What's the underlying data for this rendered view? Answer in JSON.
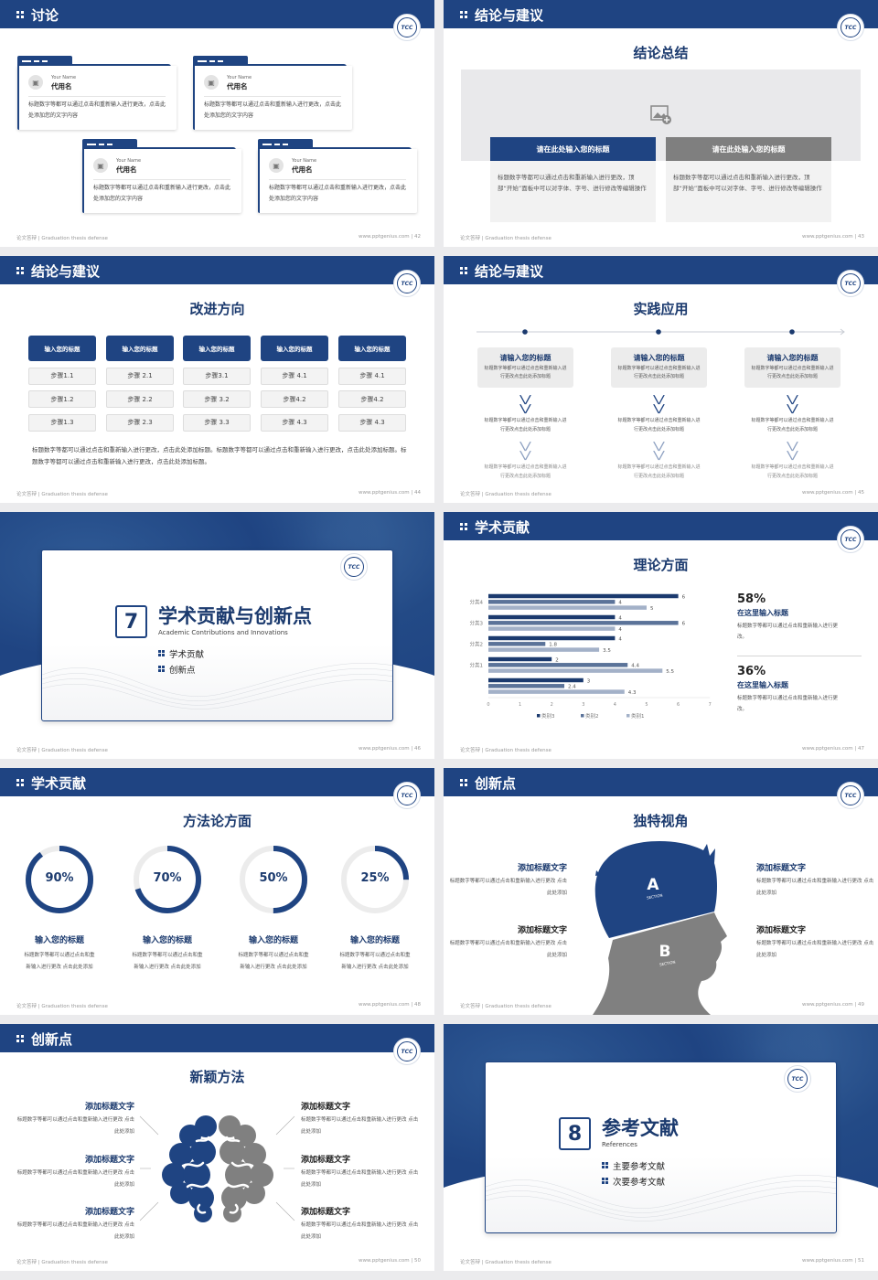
{
  "common": {
    "footer_left": "论文答辩 | Graduation thesis defense",
    "footer_site": "www.pptgenius.com",
    "logo_text": "TCC",
    "brand_color": "#1f4482",
    "secondary_color": "#808080"
  },
  "s42": {
    "header": "讨论",
    "page": "| 42",
    "cards": [
      {
        "en": "Your Name",
        "name": "代用名",
        "text": "标题数字等都可以通过点击和重新输入进行更改，点击此处添加您的文字内容"
      },
      {
        "en": "Your Name",
        "name": "代用名",
        "text": "标题数字等都可以通过点击和重新输入进行更改，点击此处添加您的文字内容"
      },
      {
        "en": "Your Name",
        "name": "代用名",
        "text": "标题数字等都可以通过点击和重新输入进行更改，点击此处添加您的文字内容"
      },
      {
        "en": "Your Name",
        "name": "代用名",
        "text": "标题数字等都可以通过点击和重新输入进行更改，点击此处添加您的文字内容"
      }
    ]
  },
  "s43": {
    "header": "结论与建议",
    "title": "结论总结",
    "page": "| 43",
    "boxes": [
      {
        "title": "请在此处输入您的标题",
        "text": "标题数字等都可以通过点击和重新输入进行更改，顶部“开始”面板中可以对字体、字号、进行修改等编辑操作"
      },
      {
        "title": "请在此处输入您的标题",
        "text": "标题数字等都可以通过点击和重新输入进行更改，顶部“开始”面板中可以对字体、字号、进行修改等编辑操作"
      }
    ]
  },
  "s44": {
    "header": "结论与建议",
    "title": "改进方向",
    "page": "| 44",
    "columns": [
      {
        "title": "输入您的标题",
        "steps": [
          "步骤1.1",
          "步骤1.2",
          "步骤1.3"
        ]
      },
      {
        "title": "输入您的标题",
        "steps": [
          "步骤 2.1",
          "步骤 2.2",
          "步骤 2.3"
        ]
      },
      {
        "title": "输入您的标题",
        "steps": [
          "步骤3.1",
          "步骤 3.2",
          "步骤 3.3"
        ]
      },
      {
        "title": "输入您的标题",
        "steps": [
          "步骤 4.1",
          "步骤4.2",
          "步骤 4.3"
        ]
      },
      {
        "title": "输入您的标题",
        "steps": [
          "步骤 4.1",
          "步骤4.2",
          "步骤 4.3"
        ]
      }
    ],
    "paragraph": "标题数字等都可以通过点击和重新输入进行更改，点击此处添加标题。标题数字等都可以通过点击和重新输入进行更改，点击此处添加标题。标题数字等都可以通过点击和重新输入进行更改，点击此处添加标题。"
  },
  "s45": {
    "header": "结论与建议",
    "title": "实践应用",
    "page": "| 45",
    "columns": [
      {
        "title": "请输入您的标题",
        "text": "标题数字等都可以通过点击和重新输入进行更改点击此处添加标题",
        "step1": "标题数字等都可以通过点击和重新输入进行更改点击此处添加标题",
        "step2": "标题数字等都可以通过点击和重新输入进行更改点击此处添加标题"
      },
      {
        "title": "请输入您的标题",
        "text": "标题数字等都可以通过点击和重新输入进行更改点击此处添加标题",
        "step1": "标题数字等都可以通过点击和重新输入进行更改点击此处添加标题",
        "step2": "标题数字等都可以通过点击和重新输入进行更改点击此处添加标题"
      },
      {
        "title": "请输入您的标题",
        "text": "标题数字等都可以通过点击和重新输入进行更改点击此处添加标题",
        "step1": "标题数字等都可以通过点击和重新输入进行更改点击此处添加标题",
        "step2": "标题数字等都可以通过点击和重新输入进行更改点击此处添加标题"
      }
    ]
  },
  "s46": {
    "number": "7",
    "title": "学术贡献与创新点",
    "subtitle": "Academic Contributions and Innovations",
    "items": [
      "学术贡献",
      "创新点"
    ],
    "page": "| 46"
  },
  "s47": {
    "header": "学术贡献",
    "title": "理论方面",
    "page": "| 47",
    "stats": [
      {
        "value": "58%",
        "title": "在这里输入标题",
        "text": "标题数字等都可以通过点击和重新输入进行更改。"
      },
      {
        "value": "36%",
        "title": "在这里输入标题",
        "text": "标题数字等都可以通过点击和重新输入进行更改。"
      }
    ]
  },
  "chart_data": {
    "type": "bar",
    "orientation": "horizontal",
    "categories": [
      "分类4",
      "分类3",
      "分类2",
      "分类1",
      ""
    ],
    "series": [
      {
        "name": "类别3",
        "color": "#1b3a6e",
        "values": [
          6,
          4,
          4,
          2,
          3
        ]
      },
      {
        "name": "类别2",
        "color": "#5b7399",
        "values": [
          4,
          6,
          1.8,
          4.4,
          2.4
        ]
      },
      {
        "name": "类别1",
        "color": "#a3b1c8",
        "values": [
          5,
          4,
          3.5,
          5.5,
          4.3
        ]
      }
    ],
    "xlim": [
      0,
      7
    ],
    "xticks": [
      "0",
      "1",
      "2",
      "3",
      "4",
      "5",
      "6",
      "7"
    ],
    "data_labels": true,
    "legend": "bottom",
    "grid": false
  },
  "s48": {
    "header": "学术贡献",
    "title": "方法论方面",
    "page": "| 48",
    "rings": [
      {
        "percent": 90,
        "label": "90%",
        "title": "输入您的标题",
        "text": "标题数字等都可以通过点击和重新输入进行更改 点击此处添加"
      },
      {
        "percent": 70,
        "label": "70%",
        "title": "输入您的标题",
        "text": "标题数字等都可以通过点击和重新输入进行更改 点击此处添加"
      },
      {
        "percent": 50,
        "label": "50%",
        "title": "输入您的标题",
        "text": "标题数字等都可以通过点击和重新输入进行更改 点击此处添加"
      },
      {
        "percent": 25,
        "label": "25%",
        "title": "输入您的标题",
        "text": "标题数字等都可以通过点击和重新输入进行更改 点击此处添加"
      }
    ]
  },
  "s49": {
    "header": "创新点",
    "title": "独特视角",
    "page": "| 49",
    "head": {
      "a": "A",
      "b": "B",
      "section": "SECTION"
    },
    "items": [
      {
        "title": "添加标题文字",
        "text": "标题数字等都可以通过点击和重新输入进行更改 点击此处添加"
      },
      {
        "title": "添加标题文字",
        "text": "标题数字等都可以通过点击和重新输入进行更改 点击此处添加"
      },
      {
        "title": "添加标题文字",
        "text": "标题数字等都可以通过点击和重新输入进行更改 点击此处添加"
      },
      {
        "title": "添加标题文字",
        "text": "标题数字等都可以通过点击和重新输入进行更改 点击此处添加"
      }
    ]
  },
  "s50": {
    "header": "创新点",
    "title": "新颖方法",
    "page": "| 50",
    "items": [
      {
        "title": "添加标题文字",
        "text": "标题数字等都可以通过点击和重新输入进行更改 点击此处添加"
      },
      {
        "title": "添加标题文字",
        "text": "标题数字等都可以通过点击和重新输入进行更改 点击此处添加"
      },
      {
        "title": "添加标题文字",
        "text": "标题数字等都可以通过点击和重新输入进行更改 点击此处添加"
      },
      {
        "title": "添加标题文字",
        "text": "标题数字等都可以通过点击和重新输入进行更改 点击此处添加"
      },
      {
        "title": "添加标题文字",
        "text": "标题数字等都可以通过点击和重新输入进行更改 点击此处添加"
      },
      {
        "title": "添加标题文字",
        "text": "标题数字等都可以通过点击和重新输入进行更改 点击此处添加"
      }
    ]
  },
  "s51": {
    "number": "8",
    "title": "参考文献",
    "subtitle": "References",
    "items": [
      "主要参考文献",
      "次要参考文献"
    ],
    "page": "| 51"
  }
}
